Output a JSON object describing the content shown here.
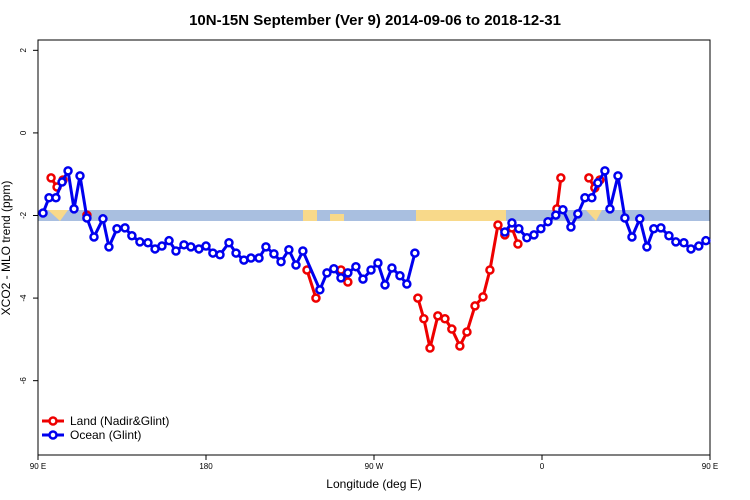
{
  "chart_data": {
    "type": "line",
    "title": "10N-15N September (Ver 9)   2014-09-06 to 2018-12-31",
    "xlabel": "Longitude (deg E)",
    "ylabel": "XCO2 - MLO trend (ppm)",
    "xlim": [
      0,
      360
    ],
    "ylim": [
      -7.8,
      2.25
    ],
    "xticks": [
      {
        "value": 0,
        "label": "90 E"
      },
      {
        "value": 90,
        "label": "180"
      },
      {
        "value": 180,
        "label": "90 W"
      },
      {
        "value": 270,
        "label": "0"
      },
      {
        "value": 360,
        "label": "90 E"
      }
    ],
    "yticks": [
      2,
      0,
      -2,
      -4,
      -6
    ],
    "legend": "bottom-left",
    "series": [
      {
        "name": "Land (Nadir&Glint)",
        "color": "#ee0000",
        "x": [
          7.0,
          10.2,
          13.4,
          null,
          26.2,
          null,
          144.1,
          148.9,
          null,
          162.3,
          166.0,
          null,
          203.5,
          206.7,
          210.0,
          214.2,
          218.0,
          221.7,
          226.0,
          229.8,
          234.1,
          238.4,
          242.1,
          246.4,
          250.1,
          253.9,
          257.1,
          null,
          278.0,
          280.1,
          null,
          295.1,
          298.3,
          301.0
        ],
        "values": [
          -1.09,
          -1.31,
          -1.14,
          null,
          -1.99,
          null,
          -3.32,
          -4.0,
          null,
          -3.32,
          -3.61,
          null,
          -4.0,
          -4.5,
          -5.21,
          -4.43,
          -4.5,
          -4.75,
          -5.16,
          -4.82,
          -4.19,
          -3.97,
          -3.32,
          -2.23,
          -2.47,
          -2.3,
          -2.69,
          null,
          -1.84,
          -1.09,
          null,
          -1.09,
          -1.33,
          -1.14
        ]
      },
      {
        "name": "Ocean (Glint)",
        "color": "#0000ee",
        "x": [
          2.7,
          5.9,
          9.6,
          12.9,
          16.1,
          19.3,
          22.5,
          26.2,
          30.0,
          34.8,
          38.0,
          42.3,
          46.6,
          50.3,
          54.6,
          58.9,
          62.7,
          66.4,
          70.2,
          73.9,
          78.2,
          81.9,
          86.2,
          90.0,
          93.7,
          97.5,
          102.3,
          106.1,
          110.3,
          114.1,
          118.4,
          122.1,
          126.4,
          130.2,
          134.4,
          138.2,
          141.9,
          151.0,
          154.8,
          158.5,
          162.3,
          166.0,
          170.3,
          174.1,
          178.4,
          182.1,
          185.9,
          189.6,
          193.9,
          197.6,
          201.9,
          null,
          250.1,
          253.9,
          257.6,
          261.9,
          265.7,
          269.4,
          273.2,
          277.4,
          281.2,
          285.5,
          289.2,
          293.0,
          296.7,
          299.9,
          303.7,
          306.4,
          310.7,
          314.4,
          318.2,
          322.4,
          326.2,
          329.9,
          333.7,
          338.0,
          341.7,
          346.0,
          349.8,
          354.0,
          357.8
        ],
        "values": [
          -1.94,
          -1.57,
          -1.57,
          -1.19,
          -0.92,
          -1.84,
          -1.04,
          -2.06,
          -2.52,
          -2.08,
          -2.76,
          -2.32,
          -2.3,
          -2.49,
          -2.64,
          -2.66,
          -2.81,
          -2.74,
          -2.61,
          -2.86,
          -2.71,
          -2.76,
          -2.81,
          -2.74,
          -2.91,
          -2.95,
          -2.66,
          -2.91,
          -3.08,
          -3.03,
          -3.03,
          -2.76,
          -2.93,
          -3.12,
          -2.83,
          -3.2,
          -2.86,
          -3.8,
          -3.39,
          -3.29,
          -3.51,
          -3.39,
          -3.24,
          -3.54,
          -3.32,
          -3.15,
          -3.68,
          -3.27,
          -3.46,
          -3.66,
          -2.91,
          null,
          -2.4,
          -2.18,
          -2.32,
          -2.54,
          -2.47,
          -2.32,
          -2.15,
          -1.99,
          -1.86,
          -2.28,
          -1.96,
          -1.57,
          -1.57,
          -1.21,
          -0.92,
          -1.84,
          -1.04,
          -2.06,
          -2.52,
          -2.08,
          -2.76,
          -2.32,
          -2.3,
          -2.49,
          -2.64,
          -2.66,
          -2.81,
          -2.74,
          -2.61
        ]
      }
    ]
  }
}
